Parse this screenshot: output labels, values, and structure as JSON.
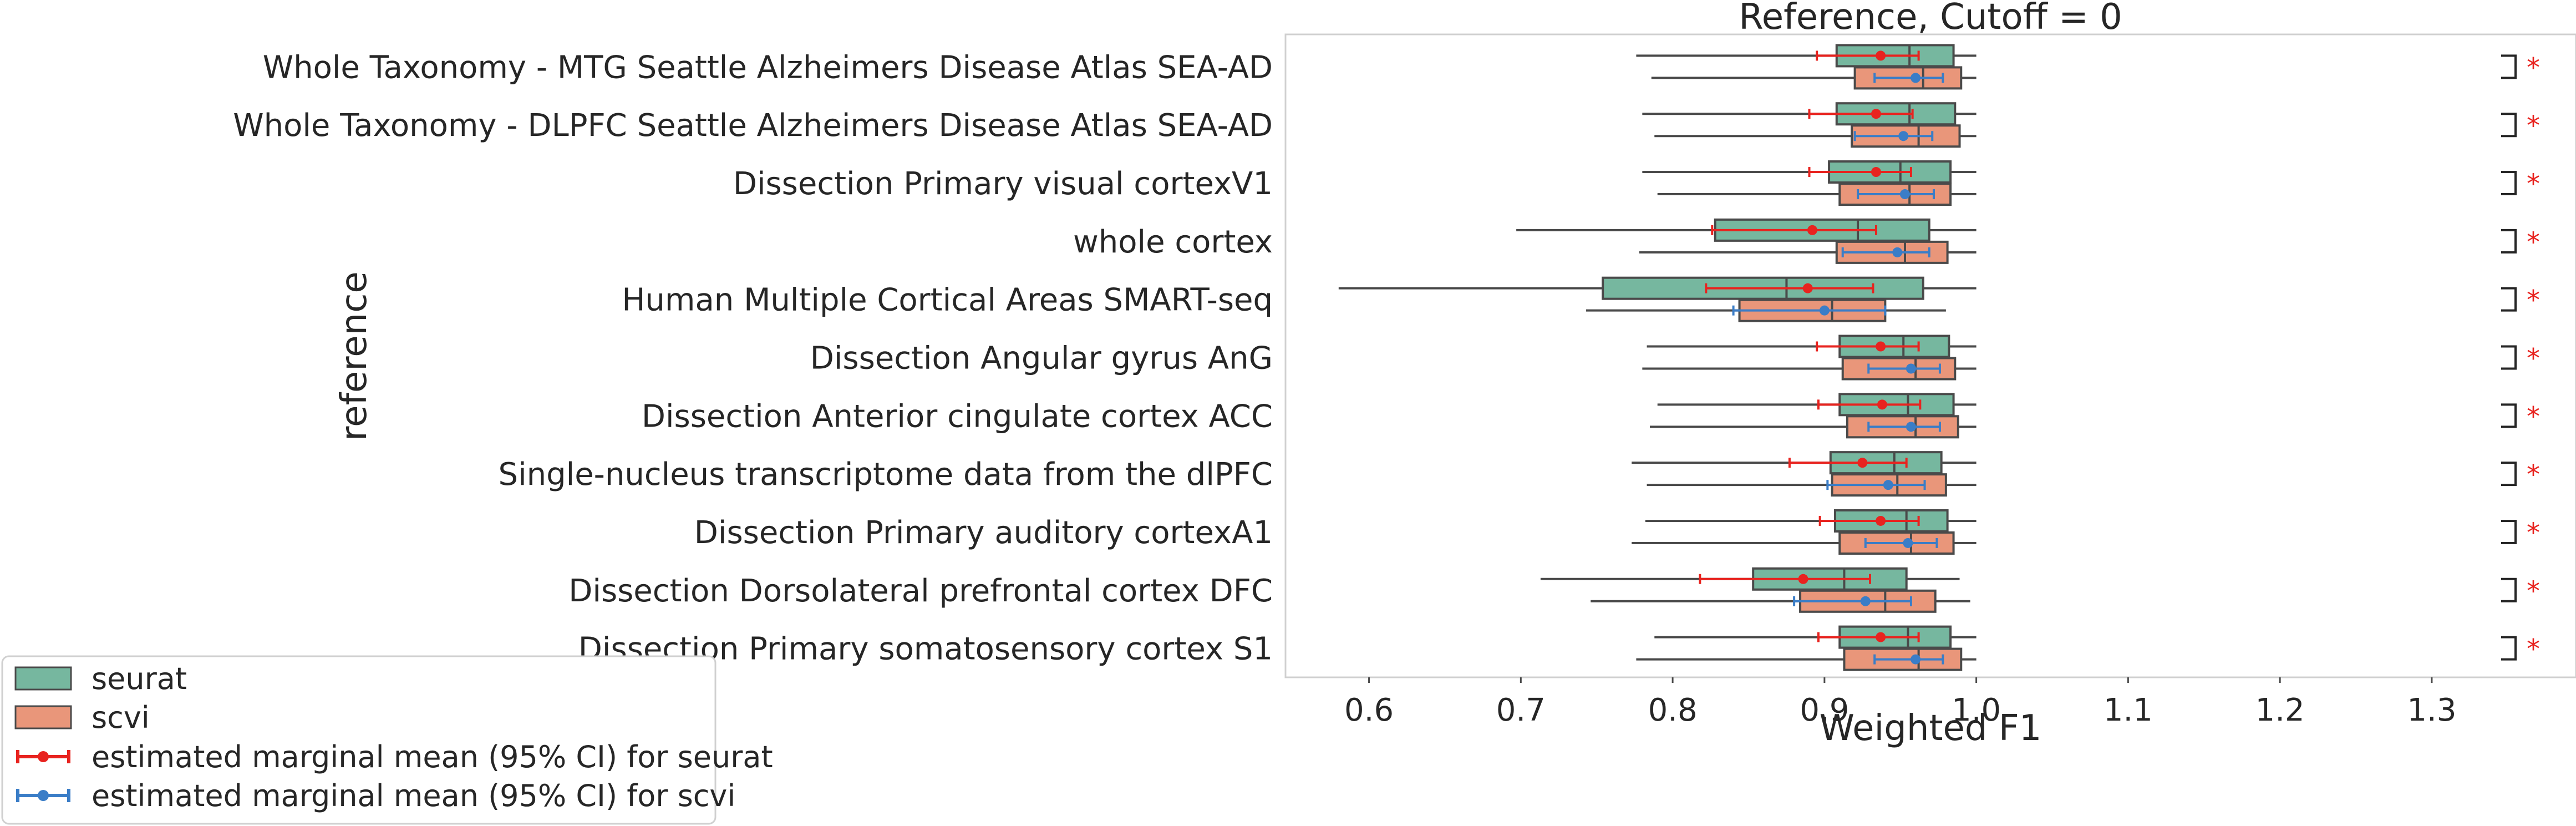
{
  "chart_data": {
    "type": "box",
    "orientation": "horizontal",
    "title": "Reference, Cutoff = 0",
    "xlabel": "Weighted F1",
    "ylabel": "reference",
    "xlim": [
      0.545,
      1.395
    ],
    "xticks": [
      0.6,
      0.7,
      0.8,
      0.9,
      1.0,
      1.1,
      1.2,
      1.3
    ],
    "xtick_labels": [
      "0.6",
      "0.7",
      "0.8",
      "0.9",
      "1.0",
      "1.1",
      "1.2",
      "1.3"
    ],
    "grid": false,
    "legend_position": "lower-left, outside plot",
    "categories": [
      "Whole Taxonomy - MTG Seattle Alzheimers Disease Atlas SEA-AD",
      "Whole Taxonomy - DLPFC Seattle Alzheimers Disease Atlas SEA-AD",
      "Dissection Primary visual cortexV1",
      "whole cortex",
      "Human Multiple Cortical Areas SMART-seq",
      "Dissection Angular gyrus AnG",
      "Dissection Anterior cingulate cortex ACC",
      "Single-nucleus transcriptome data from the dlPFC",
      "Dissection Primary auditory cortexA1",
      "Dissection Dorsolateral prefrontal cortex DFC",
      "Dissection Primary somatosensory cortex S1"
    ],
    "series": [
      {
        "name": "seurat",
        "color": "#76b79f",
        "boxes": [
          {
            "whislo": 0.776,
            "q1": 0.908,
            "med": 0.956,
            "q3": 0.985,
            "whishi": 1.0
          },
          {
            "whislo": 0.78,
            "q1": 0.908,
            "med": 0.956,
            "q3": 0.986,
            "whishi": 1.0
          },
          {
            "whislo": 0.78,
            "q1": 0.903,
            "med": 0.95,
            "q3": 0.983,
            "whishi": 1.0
          },
          {
            "whislo": 0.697,
            "q1": 0.828,
            "med": 0.922,
            "q3": 0.969,
            "whishi": 1.0
          },
          {
            "whislo": 0.58,
            "q1": 0.754,
            "med": 0.875,
            "q3": 0.965,
            "whishi": 1.0
          },
          {
            "whislo": 0.783,
            "q1": 0.91,
            "med": 0.952,
            "q3": 0.982,
            "whishi": 1.0
          },
          {
            "whislo": 0.79,
            "q1": 0.91,
            "med": 0.955,
            "q3": 0.985,
            "whishi": 1.0
          },
          {
            "whislo": 0.773,
            "q1": 0.904,
            "med": 0.946,
            "q3": 0.977,
            "whishi": 1.0
          },
          {
            "whislo": 0.782,
            "q1": 0.907,
            "med": 0.954,
            "q3": 0.981,
            "whishi": 1.0
          },
          {
            "whislo": 0.713,
            "q1": 0.853,
            "med": 0.913,
            "q3": 0.954,
            "whishi": 0.989
          },
          {
            "whislo": 0.788,
            "q1": 0.91,
            "med": 0.955,
            "q3": 0.983,
            "whishi": 1.0
          }
        ],
        "emmeans": [
          {
            "mean": 0.937,
            "ci": [
              0.895,
              0.962
            ]
          },
          {
            "mean": 0.934,
            "ci": [
              0.89,
              0.958
            ]
          },
          {
            "mean": 0.934,
            "ci": [
              0.89,
              0.957
            ]
          },
          {
            "mean": 0.892,
            "ci": [
              0.826,
              0.934
            ]
          },
          {
            "mean": 0.889,
            "ci": [
              0.822,
              0.932
            ]
          },
          {
            "mean": 0.937,
            "ci": [
              0.895,
              0.962
            ]
          },
          {
            "mean": 0.938,
            "ci": [
              0.896,
              0.963
            ]
          },
          {
            "mean": 0.925,
            "ci": [
              0.877,
              0.954
            ]
          },
          {
            "mean": 0.937,
            "ci": [
              0.897,
              0.962
            ]
          },
          {
            "mean": 0.886,
            "ci": [
              0.818,
              0.93
            ]
          },
          {
            "mean": 0.937,
            "ci": [
              0.896,
              0.962
            ]
          }
        ]
      },
      {
        "name": "scvi",
        "color": "#e9967a",
        "boxes": [
          {
            "whislo": 0.786,
            "q1": 0.92,
            "med": 0.965,
            "q3": 0.99,
            "whishi": 1.0
          },
          {
            "whislo": 0.788,
            "q1": 0.918,
            "med": 0.962,
            "q3": 0.989,
            "whishi": 1.0
          },
          {
            "whislo": 0.79,
            "q1": 0.91,
            "med": 0.956,
            "q3": 0.983,
            "whishi": 1.0
          },
          {
            "whislo": 0.778,
            "q1": 0.908,
            "med": 0.953,
            "q3": 0.981,
            "whishi": 1.0
          },
          {
            "whislo": 0.743,
            "q1": 0.844,
            "med": 0.905,
            "q3": 0.94,
            "whishi": 0.98
          },
          {
            "whislo": 0.78,
            "q1": 0.912,
            "med": 0.96,
            "q3": 0.986,
            "whishi": 1.0
          },
          {
            "whislo": 0.785,
            "q1": 0.915,
            "med": 0.96,
            "q3": 0.988,
            "whishi": 1.0
          },
          {
            "whislo": 0.783,
            "q1": 0.905,
            "med": 0.948,
            "q3": 0.98,
            "whishi": 1.0
          },
          {
            "whislo": 0.773,
            "q1": 0.91,
            "med": 0.957,
            "q3": 0.985,
            "whishi": 1.0
          },
          {
            "whislo": 0.746,
            "q1": 0.884,
            "med": 0.94,
            "q3": 0.973,
            "whishi": 0.996
          },
          {
            "whislo": 0.776,
            "q1": 0.913,
            "med": 0.962,
            "q3": 0.99,
            "whishi": 1.0
          }
        ],
        "emmeans": [
          {
            "mean": 0.96,
            "ci": [
              0.933,
              0.978
            ]
          },
          {
            "mean": 0.952,
            "ci": [
              0.92,
              0.971
            ]
          },
          {
            "mean": 0.953,
            "ci": [
              0.922,
              0.972
            ]
          },
          {
            "mean": 0.948,
            "ci": [
              0.912,
              0.969
            ]
          },
          {
            "mean": 0.9,
            "ci": [
              0.84,
              0.94
            ]
          },
          {
            "mean": 0.957,
            "ci": [
              0.929,
              0.976
            ]
          },
          {
            "mean": 0.957,
            "ci": [
              0.929,
              0.976
            ]
          },
          {
            "mean": 0.942,
            "ci": [
              0.902,
              0.966
            ]
          },
          {
            "mean": 0.955,
            "ci": [
              0.927,
              0.974
            ]
          },
          {
            "mean": 0.927,
            "ci": [
              0.88,
              0.957
            ]
          },
          {
            "mean": 0.96,
            "ci": [
              0.933,
              0.978
            ]
          }
        ]
      }
    ],
    "significance": [
      "*",
      "*",
      "*",
      "*",
      "*",
      "*",
      "*",
      "*",
      "*",
      "*",
      "*"
    ],
    "legend": [
      {
        "label": "seurat",
        "kind": "box",
        "color": "#76b79f"
      },
      {
        "label": "scvi",
        "kind": "box",
        "color": "#e9967a"
      },
      {
        "label": "estimated marginal mean (95% CI) for seurat",
        "kind": "errorbar",
        "color": "#e8231f"
      },
      {
        "label": "estimated marginal mean (95% CI) for scvi",
        "kind": "errorbar",
        "color": "#3a7dc7"
      }
    ],
    "colors": {
      "seurat_box": "#76b79f",
      "scvi_box": "#e9967a",
      "seurat_emm": "#e8231f",
      "scvi_emm": "#3a7dc7",
      "edge": "#4a4a4a",
      "significance": "#e8231f"
    }
  }
}
